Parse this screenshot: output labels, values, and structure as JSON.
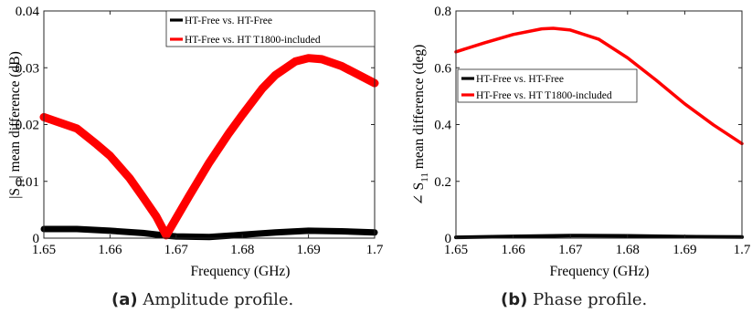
{
  "chart_data": [
    {
      "type": "line",
      "xlabel": "Frequency (GHz)",
      "ylabel_main": "|S",
      "ylabel_sub": "11",
      "ylabel_rest": "| mean difference (dB)",
      "xlim": [
        1.65,
        1.7
      ],
      "ylim": [
        0,
        0.04
      ],
      "xticks": [
        "1.65",
        "1.66",
        "1.67",
        "1.68",
        "1.69",
        "1.7"
      ],
      "yticks": [
        "0",
        "0.01",
        "0.02",
        "0.03",
        "0.04"
      ],
      "grid": false,
      "legend_position": "top-right",
      "series": [
        {
          "name": "HT-Free vs. HT-Free",
          "color": "#000000",
          "x": [
            1.65,
            1.655,
            1.66,
            1.665,
            1.668,
            1.67,
            1.675,
            1.68,
            1.685,
            1.69,
            1.695,
            1.7
          ],
          "y": [
            0.0016,
            0.0016,
            0.0013,
            0.0009,
            0.0005,
            0.0003,
            0.0002,
            0.0006,
            0.001,
            0.0013,
            0.0012,
            0.001
          ]
        },
        {
          "name": "HT-Free vs. HT T1800-included",
          "color": "#ff0000",
          "x": [
            1.65,
            1.655,
            1.658,
            1.66,
            1.663,
            1.665,
            1.667,
            1.6685,
            1.67,
            1.672,
            1.675,
            1.678,
            1.68,
            1.683,
            1.685,
            1.688,
            1.69,
            1.692,
            1.695,
            1.698,
            1.7
          ],
          "y": [
            0.0213,
            0.0193,
            0.0165,
            0.0145,
            0.0105,
            0.0072,
            0.0038,
            0.0005,
            0.0035,
            0.0075,
            0.0133,
            0.0185,
            0.0217,
            0.0263,
            0.0287,
            0.0311,
            0.0317,
            0.0315,
            0.0303,
            0.0285,
            0.0273
          ]
        }
      ]
    },
    {
      "type": "line",
      "xlabel": "Frequency (GHz)",
      "ylabel_main": "∠ S",
      "ylabel_sub": "11",
      "ylabel_rest": " mean difference (deg)",
      "xlim": [
        1.65,
        1.7
      ],
      "ylim": [
        0,
        0.8
      ],
      "xticks": [
        "1.65",
        "1.66",
        "1.67",
        "1.68",
        "1.69",
        "1.7"
      ],
      "yticks": [
        "0",
        "0.2",
        "0.4",
        "0.6",
        "0.8"
      ],
      "grid": false,
      "legend_position": "middle-left",
      "series": [
        {
          "name": "HT-Free vs. HT-Free",
          "color": "#000000",
          "x": [
            1.65,
            1.66,
            1.67,
            1.68,
            1.69,
            1.7
          ],
          "y": [
            0.003,
            0.006,
            0.009,
            0.008,
            0.005,
            0.004
          ]
        },
        {
          "name": "HT-Free vs. HT T1800-included",
          "color": "#ff0000",
          "x": [
            1.65,
            1.655,
            1.66,
            1.665,
            1.667,
            1.67,
            1.675,
            1.68,
            1.685,
            1.69,
            1.695,
            1.7
          ],
          "y": [
            0.656,
            0.688,
            0.717,
            0.737,
            0.739,
            0.733,
            0.7,
            0.635,
            0.556,
            0.473,
            0.399,
            0.333
          ]
        }
      ]
    }
  ],
  "captions": [
    {
      "tag": "(a)",
      "text": " Amplitude profile."
    },
    {
      "tag": "(b)",
      "text": " Phase profile."
    }
  ]
}
